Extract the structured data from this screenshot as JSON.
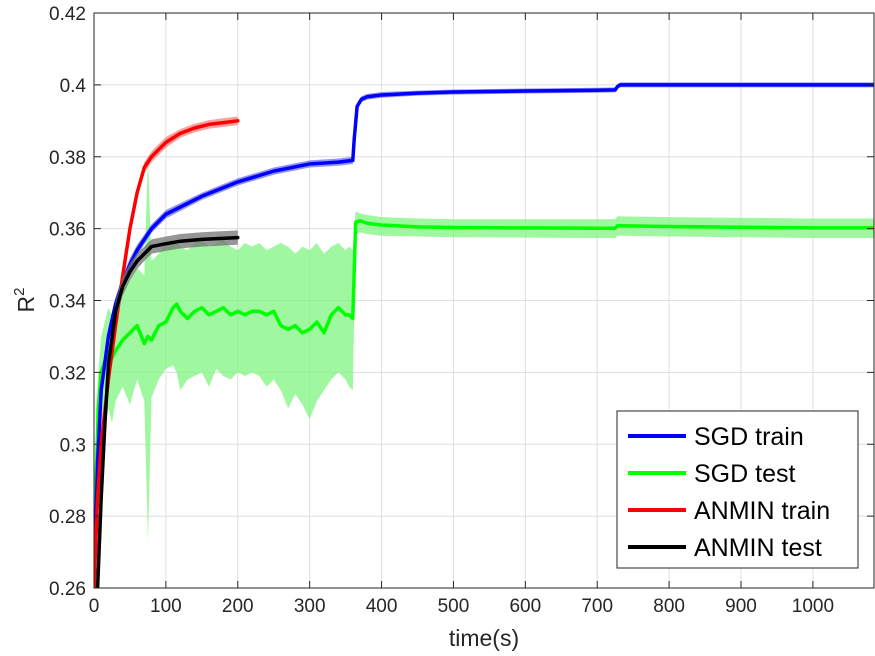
{
  "chart_data": {
    "type": "line",
    "title": "",
    "xlabel": "time(s)",
    "ylabel": "R",
    "ylabel_superscript": "2",
    "xlim": [
      0,
      1085
    ],
    "ylim": [
      0.26,
      0.42
    ],
    "xticks": [
      0,
      100,
      200,
      300,
      400,
      500,
      600,
      700,
      800,
      900,
      1000
    ],
    "xtick_labels": [
      "0",
      "100",
      "200",
      "300",
      "400",
      "500",
      "600",
      "700",
      "800",
      "900",
      "1000"
    ],
    "yticks": [
      0.26,
      0.28,
      0.3,
      0.32,
      0.34,
      0.36,
      0.38,
      0.4,
      0.42
    ],
    "ytick_labels": [
      "0.26",
      "0.28",
      "0.3",
      "0.32",
      "0.34",
      "0.36",
      "0.38",
      "0.4",
      "0.42"
    ],
    "grid": true,
    "legend_position": "bottom-right",
    "series": [
      {
        "name": "SGD train",
        "color": "#0000ff",
        "band_color": "#6f6fff",
        "x": [
          0,
          5,
          10,
          20,
          30,
          40,
          50,
          60,
          80,
          100,
          150,
          200,
          250,
          300,
          340,
          360,
          362,
          366,
          372,
          380,
          400,
          450,
          500,
          600,
          700,
          725,
          728,
          732,
          750,
          800,
          900,
          1000,
          1085
        ],
        "y": [
          0.26,
          0.295,
          0.315,
          0.33,
          0.339,
          0.345,
          0.35,
          0.354,
          0.36,
          0.364,
          0.369,
          0.373,
          0.376,
          0.378,
          0.3785,
          0.379,
          0.385,
          0.394,
          0.396,
          0.3967,
          0.3972,
          0.3977,
          0.398,
          0.3983,
          0.3985,
          0.3986,
          0.3995,
          0.4,
          0.4,
          0.4,
          0.4,
          0.4,
          0.4
        ],
        "band": [
          0.0012,
          0.004,
          0.003,
          0.0025,
          0.002,
          0.002,
          0.0018,
          0.0015,
          0.0012,
          0.0012,
          0.001,
          0.001,
          0.001,
          0.001,
          0.001,
          0.001,
          0.001,
          0.001,
          0.0008,
          0.0008,
          0.0008,
          0.0007,
          0.0007,
          0.0007,
          0.0007,
          0.0007,
          0.0007,
          0.0007,
          0.0007,
          0.0007,
          0.0007,
          0.0007,
          0.0007
        ]
      },
      {
        "name": "SGD test",
        "color": "#00ff00",
        "band_color": "#7ff57f",
        "x": [
          0,
          3,
          6,
          10,
          15,
          20,
          25,
          30,
          40,
          50,
          60,
          70,
          75,
          80,
          90,
          100,
          110,
          115,
          120,
          130,
          140,
          150,
          160,
          170,
          180,
          190,
          200,
          210,
          220,
          230,
          240,
          250,
          260,
          270,
          280,
          290,
          300,
          310,
          320,
          330,
          340,
          350,
          355,
          360,
          364,
          370,
          380,
          400,
          450,
          500,
          600,
          700,
          725,
          728,
          732,
          800,
          900,
          1000,
          1085
        ],
        "y": [
          0.255,
          0.29,
          0.31,
          0.32,
          0.323,
          0.326,
          0.324,
          0.326,
          0.329,
          0.331,
          0.333,
          0.328,
          0.33,
          0.329,
          0.333,
          0.334,
          0.338,
          0.339,
          0.337,
          0.335,
          0.337,
          0.338,
          0.336,
          0.337,
          0.338,
          0.336,
          0.337,
          0.336,
          0.337,
          0.337,
          0.336,
          0.337,
          0.333,
          0.332,
          0.333,
          0.331,
          0.332,
          0.334,
          0.331,
          0.336,
          0.338,
          0.336,
          0.336,
          0.335,
          0.3618,
          0.3622,
          0.3615,
          0.361,
          0.3605,
          0.3603,
          0.3602,
          0.3601,
          0.3601,
          0.3608,
          0.3608,
          0.3606,
          0.3604,
          0.3602,
          0.3602
        ],
        "lower": [
          0.25,
          0.27,
          0.29,
          0.3,
          0.305,
          0.31,
          0.306,
          0.312,
          0.316,
          0.311,
          0.318,
          0.312,
          0.273,
          0.313,
          0.318,
          0.321,
          0.322,
          0.32,
          0.315,
          0.318,
          0.319,
          0.32,
          0.316,
          0.321,
          0.319,
          0.318,
          0.32,
          0.319,
          0.32,
          0.319,
          0.316,
          0.318,
          0.315,
          0.31,
          0.314,
          0.311,
          0.307,
          0.312,
          0.315,
          0.318,
          0.32,
          0.318,
          0.316,
          0.315,
          0.3585,
          0.359,
          0.3585,
          0.358,
          0.3578,
          0.3576,
          0.3575,
          0.3574,
          0.3574,
          0.358,
          0.358,
          0.3578,
          0.3576,
          0.3574,
          0.3574
        ],
        "upper": [
          0.26,
          0.31,
          0.32,
          0.33,
          0.334,
          0.338,
          0.336,
          0.339,
          0.343,
          0.346,
          0.349,
          0.347,
          0.38,
          0.351,
          0.353,
          0.356,
          0.357,
          0.356,
          0.355,
          0.354,
          0.356,
          0.357,
          0.355,
          0.356,
          0.357,
          0.355,
          0.354,
          0.356,
          0.355,
          0.356,
          0.354,
          0.355,
          0.356,
          0.355,
          0.353,
          0.355,
          0.354,
          0.356,
          0.353,
          0.355,
          0.356,
          0.354,
          0.355,
          0.354,
          0.3648,
          0.3642,
          0.3638,
          0.3632,
          0.3628,
          0.3626,
          0.3626,
          0.3626,
          0.3626,
          0.3634,
          0.3634,
          0.3632,
          0.363,
          0.3628,
          0.3628
        ]
      },
      {
        "name": "ANMIN train",
        "color": "#ff0000",
        "band_color": "#ff8080",
        "x": [
          0,
          5,
          10,
          20,
          30,
          40,
          50,
          60,
          70,
          80,
          90,
          100,
          120,
          140,
          160,
          180,
          200
        ],
        "y": [
          0.26,
          0.285,
          0.3,
          0.318,
          0.333,
          0.347,
          0.36,
          0.37,
          0.377,
          0.38,
          0.382,
          0.384,
          0.3865,
          0.388,
          0.389,
          0.3895,
          0.39
        ],
        "band": [
          0.0012,
          0.0015,
          0.0015,
          0.0015,
          0.0015,
          0.0015,
          0.0015,
          0.0015,
          0.0015,
          0.0015,
          0.0015,
          0.0015,
          0.0012,
          0.0012,
          0.0012,
          0.0012,
          0.0012
        ]
      },
      {
        "name": "ANMIN test",
        "color": "#000000",
        "band_color": "#737373",
        "x": [
          0,
          5,
          10,
          15,
          20,
          30,
          40,
          50,
          60,
          70,
          80,
          100,
          120,
          150,
          200
        ],
        "y": [
          0.25,
          0.26,
          0.285,
          0.305,
          0.322,
          0.337,
          0.344,
          0.348,
          0.351,
          0.353,
          0.355,
          0.3558,
          0.3565,
          0.357,
          0.3575
        ],
        "band": [
          0.001,
          0.002,
          0.003,
          0.003,
          0.003,
          0.0028,
          0.0026,
          0.0024,
          0.0022,
          0.002,
          0.002,
          0.002,
          0.002,
          0.002,
          0.002
        ]
      }
    ]
  }
}
